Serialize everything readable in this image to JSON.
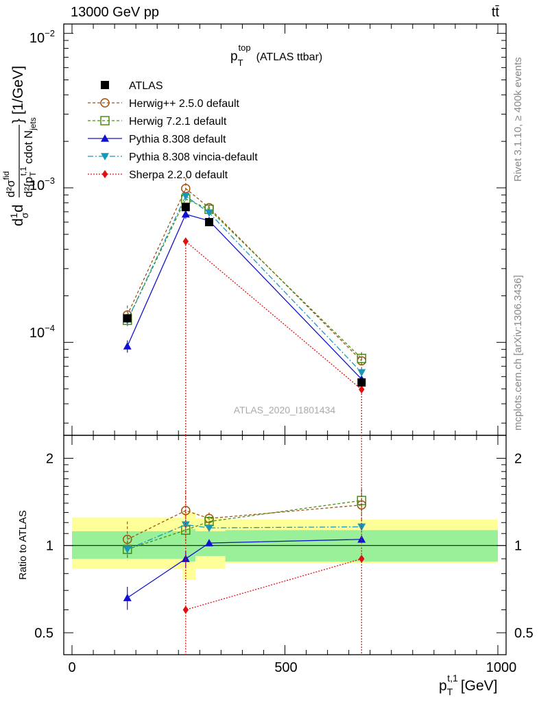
{
  "header": {
    "energy_label": "13000 GeV pp",
    "process_label": "tt̄"
  },
  "plot_title": {
    "main": "p",
    "sup": "top",
    "sub": "T",
    "suffix": "(ATLAS ttbar)"
  },
  "side_labels": {
    "rivet": "Rivet 3.1.10, ≥ 400k events",
    "mcplots": "mcplots.cern.ch [arXiv:1306.3436]"
  },
  "watermark": "ATLAS_2020_I1801434",
  "axes": {
    "y_main_label": "d¹/σ d²σ/d²{p_T^{t,1} cdot N_jets} [1/GeV]",
    "y_main_label_parts": {
      "frac1_num": "1",
      "frac1_den": "σ",
      "prefix": "d",
      "frac2_num": "d²σ",
      "frac2_num_sup": "fid",
      "frac2_den": "d²{p",
      "frac2_den_sub": "T",
      "frac2_den_sup": "t,1",
      "frac2_den_rest": "cdot N",
      "frac2_den_rest_sub": "jets",
      "unit": "} [1/GeV]"
    },
    "y_ratio_label": "Ratio to ATLAS",
    "x_label_main": "p",
    "x_label_sub": "T",
    "x_label_sup": "t,1",
    "x_label_unit": "[GeV]",
    "x_ticks": [
      "0",
      "500",
      "1000"
    ],
    "y_main_ticks": [
      {
        "base": "10",
        "exp": "−2"
      },
      {
        "base": "10",
        "exp": "−3"
      },
      {
        "base": "10",
        "exp": "−4"
      }
    ],
    "y_ratio_ticks": [
      "2",
      "1",
      "0.5"
    ]
  },
  "legend": [
    {
      "label": "ATLAS",
      "color": "#000000",
      "marker": "square-filled",
      "dash": ""
    },
    {
      "label": "Herwig++ 2.5.0 default",
      "color": "#a05010",
      "marker": "circle-open",
      "dash": "4,3"
    },
    {
      "label": "Herwig 7.2.1 default",
      "color": "#4a8c10",
      "marker": "square-open",
      "dash": "4,3"
    },
    {
      "label": "Pythia 8.308 default",
      "color": "#1010d0",
      "marker": "triangle-up",
      "dash": ""
    },
    {
      "label": "Pythia 8.308 vincia-default",
      "color": "#1898b8",
      "marker": "triangle-down",
      "dash": "8,3,2,3"
    },
    {
      "label": "Sherpa 2.2.0 default",
      "color": "#e01010",
      "marker": "diamond",
      "dash": "2,2"
    }
  ],
  "chart_data": {
    "type": "line",
    "x_range": [
      -20,
      1000
    ],
    "y_main_range_log": [
      2.5e-05,
      0.0115
    ],
    "y_ratio_range_log": [
      0.42,
      2.4
    ],
    "x": [
      130,
      267,
      322,
      680
    ],
    "bins": [
      [
        0,
        260
      ],
      [
        260,
        290
      ],
      [
        290,
        360
      ],
      [
        360,
        1000
      ]
    ],
    "data": {
      "name": "ATLAS",
      "values": [
        0.000143,
        0.00075,
        0.0006,
        5.5e-05
      ],
      "band_inner": [
        [
          0.9,
          1.12
        ],
        [
          0.88,
          1.14
        ],
        [
          0.92,
          1.12
        ],
        [
          0.88,
          1.13
        ]
      ],
      "band_outer": [
        [
          0.83,
          1.25
        ],
        [
          0.76,
          1.3
        ],
        [
          0.83,
          1.24
        ],
        [
          0.87,
          1.23
        ]
      ]
    },
    "series": [
      {
        "name": "Herwig++ 2.5.0 default",
        "ratio": [
          1.05,
          1.32,
          1.24,
          1.38
        ],
        "ratio_err": [
          0.16,
          0.22,
          0.06,
          0.18
        ]
      },
      {
        "name": "Herwig 7.2.1 default",
        "ratio": [
          0.97,
          1.13,
          1.21,
          1.43
        ],
        "ratio_err": [
          0.07,
          0.1,
          0.05,
          0.14
        ]
      },
      {
        "name": "Pythia 8.308 default",
        "ratio": [
          0.66,
          0.9,
          1.02,
          1.05
        ],
        "ratio_err": [
          0.06,
          0.06,
          0.02,
          0.03
        ]
      },
      {
        "name": "Pythia 8.308 vincia-default",
        "ratio": [
          0.97,
          1.18,
          1.15,
          1.16
        ],
        "ratio_err": [
          0.05,
          0.05,
          0.03,
          0.03
        ]
      },
      {
        "name": "Sherpa 2.2.0 default",
        "ratio": [
          null,
          0.6,
          null,
          0.9
        ],
        "ratio_err": [
          0,
          0,
          0,
          0
        ]
      }
    ]
  }
}
